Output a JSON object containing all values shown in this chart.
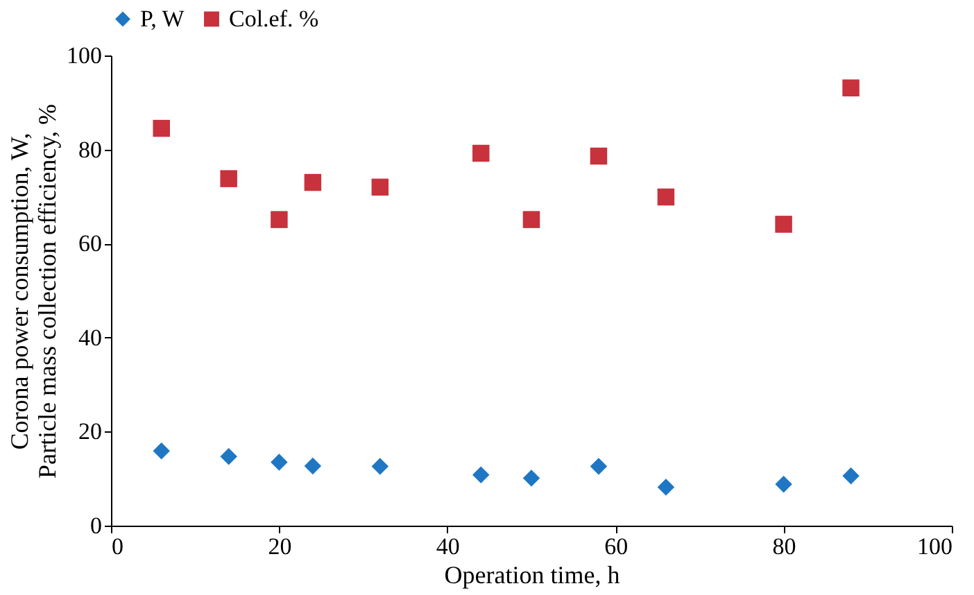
{
  "chart_data": {
    "type": "scatter",
    "xlabel": "Operation time, h",
    "ylabel": [
      "Corona power consumption, W,",
      "Particle mass collection efficiency, %"
    ],
    "x": [
      6,
      14,
      20,
      24,
      32,
      44,
      50,
      58,
      66,
      80,
      88
    ],
    "series": [
      {
        "name": "P, W",
        "color": "#1f77c4",
        "marker": "diamond",
        "values": [
          15.9,
          14.7,
          13.5,
          12.7,
          12.6,
          10.8,
          10.1,
          12.6,
          8.2,
          8.8,
          10.6
        ]
      },
      {
        "name": "Col.ef. %",
        "color": "#c8323c",
        "marker": "square",
        "values": [
          84.5,
          73.8,
          65.1,
          73.0,
          72.0,
          79.2,
          65.1,
          78.6,
          69.9,
          64.1,
          93.1
        ]
      }
    ],
    "xlim": [
      0,
      100
    ],
    "xticks": [
      0,
      20,
      40,
      60,
      80,
      100
    ],
    "ylim": [
      0,
      100
    ],
    "yticks": [
      0,
      20,
      40,
      60,
      80,
      100
    ],
    "grid": false,
    "legend": "top"
  }
}
